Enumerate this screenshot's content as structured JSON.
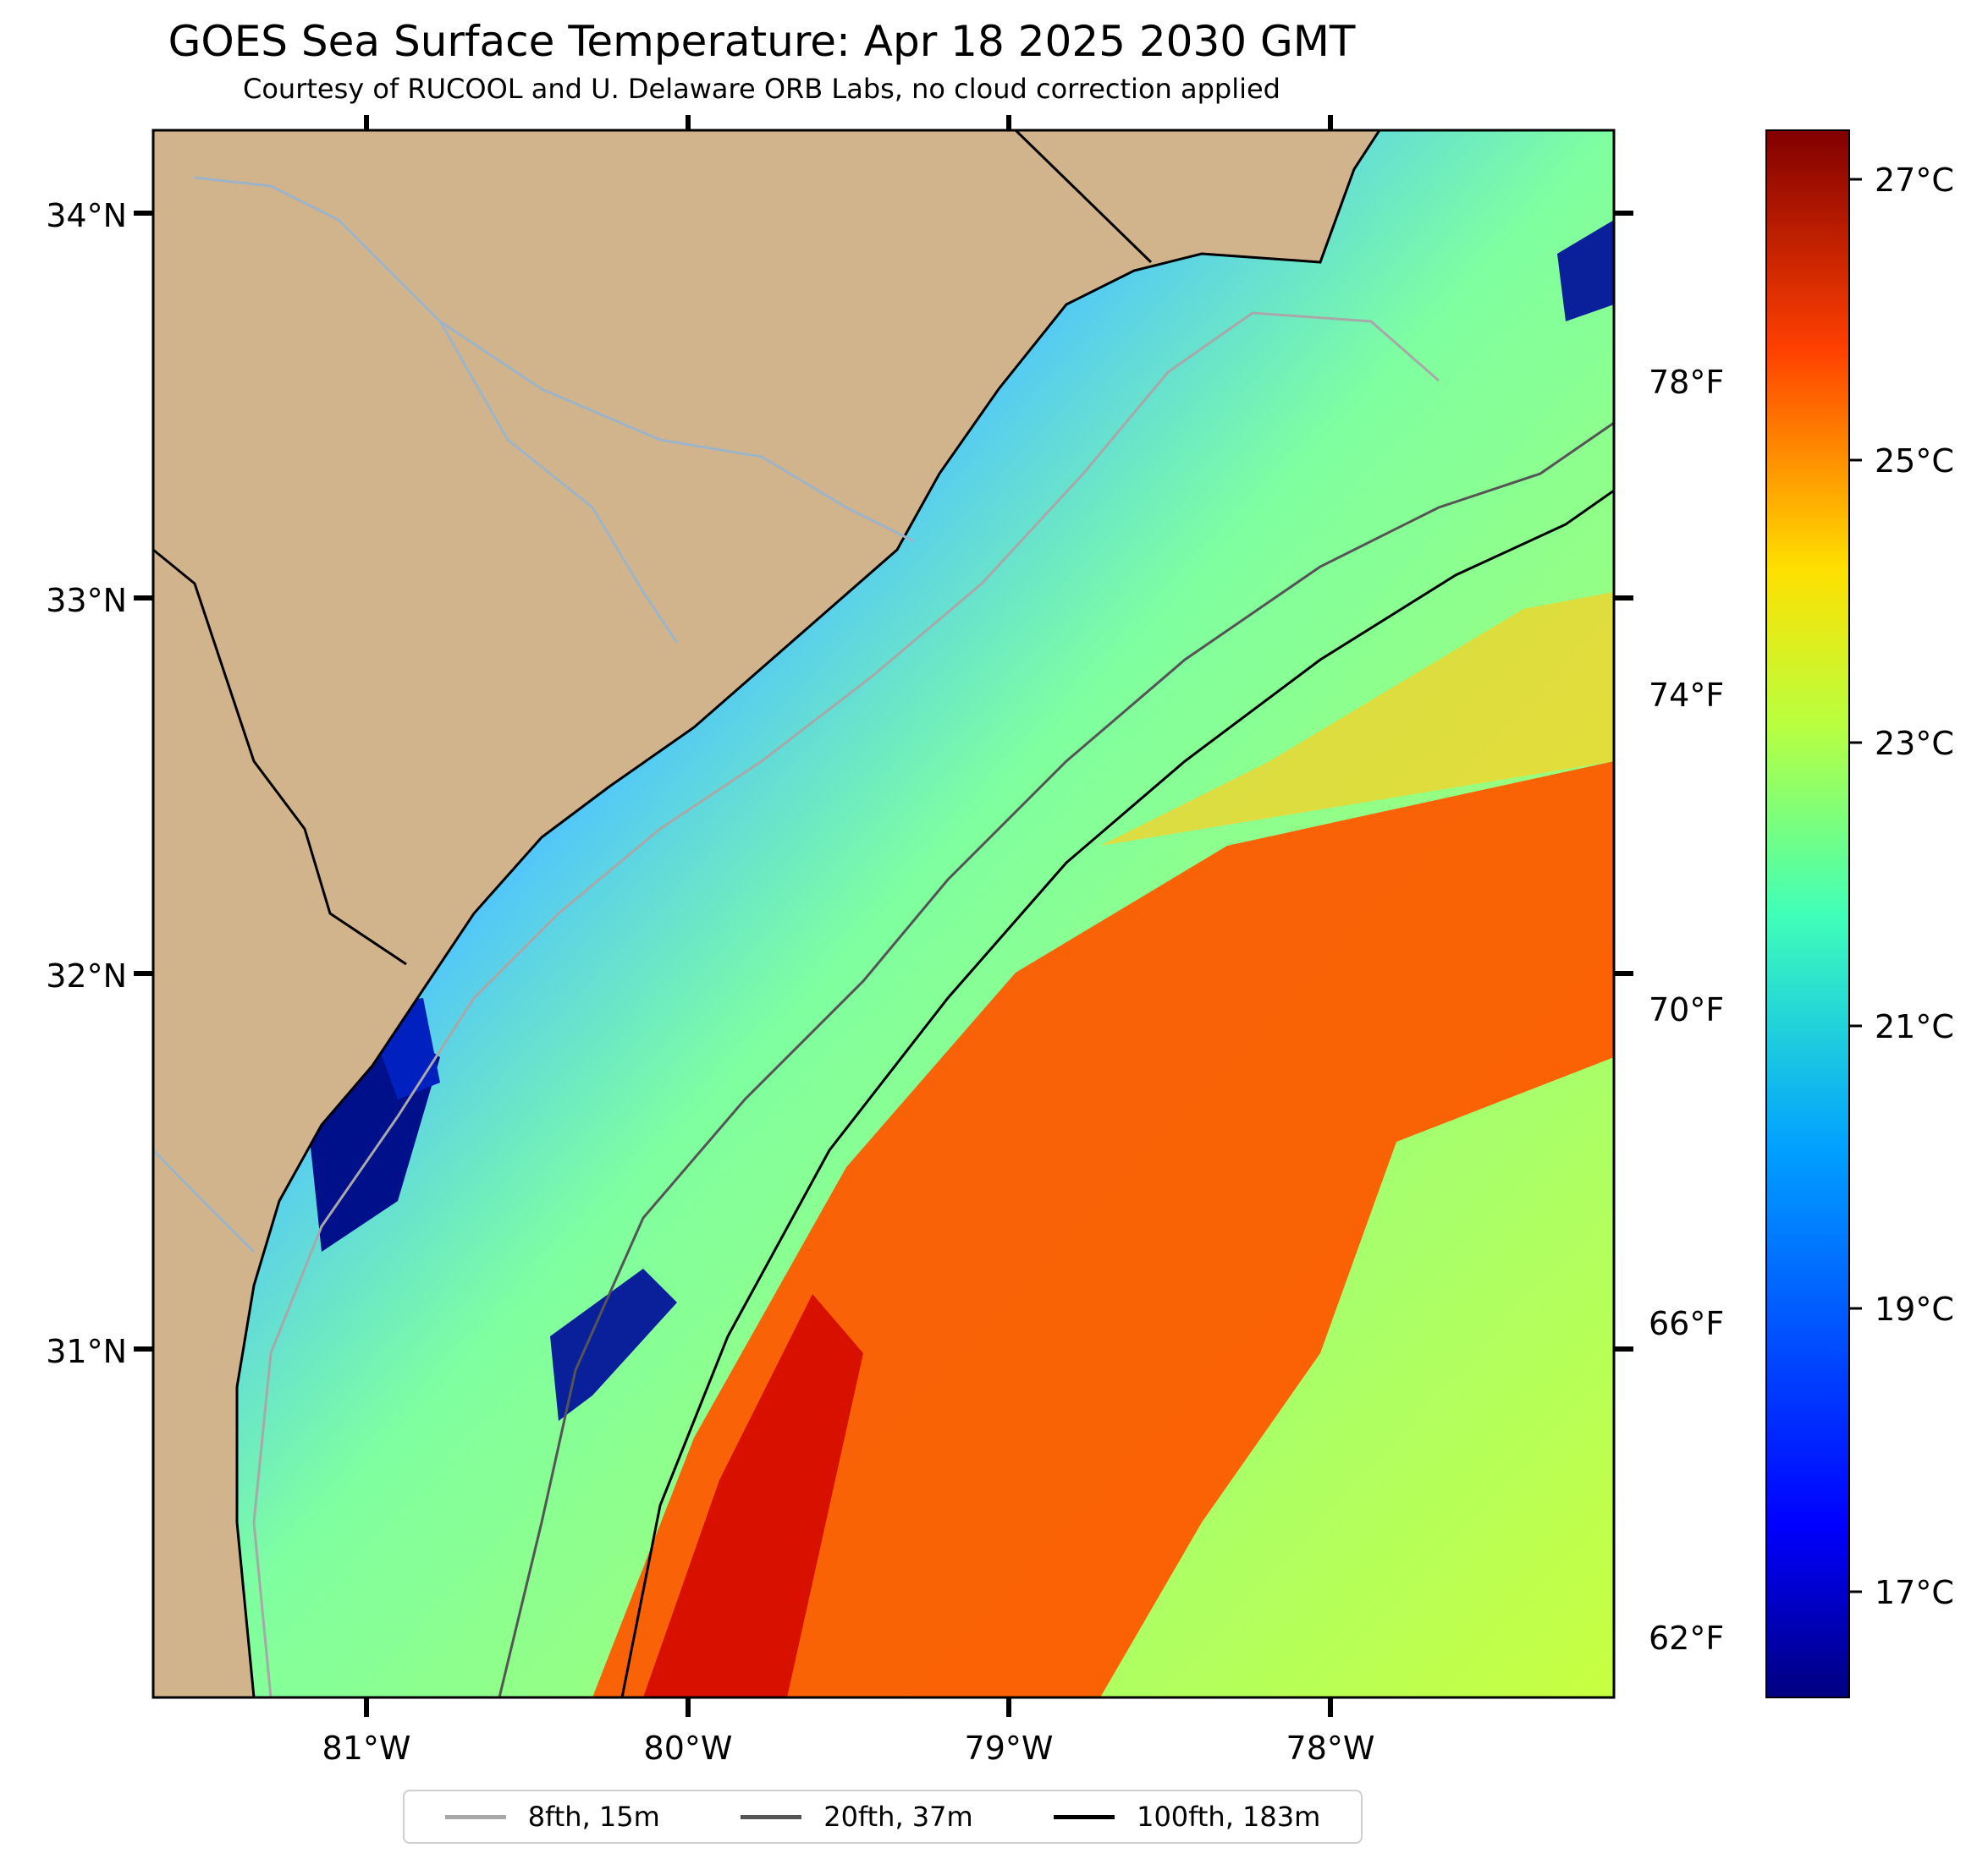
{
  "title": "GOES Sea Surface Temperature: Apr 18 2025 2030 GMT",
  "subtitle": "Courtesy of RUCOOL and U. Delaware ORB Labs, no cloud correction applied",
  "map": {
    "lat_labels": [
      "34°N",
      "33°N",
      "32°N",
      "31°N"
    ],
    "lon_labels": [
      "81°W",
      "80°W",
      "79°W",
      "78°W"
    ],
    "fahrenheit_labels": [
      "78°F",
      "74°F",
      "70°F",
      "66°F",
      "62°F"
    ]
  },
  "colorbar": {
    "colormap": "jet",
    "labels": [
      "27°C",
      "25°C",
      "23°C",
      "21°C",
      "19°C",
      "17°C"
    ]
  },
  "legend": [
    {
      "label": "8fth, 15m",
      "color": "#a8a8a8"
    },
    {
      "label": "20fth, 37m",
      "color": "#555555"
    },
    {
      "label": "100fth, 183m",
      "color": "#000000"
    }
  ],
  "colors": {
    "land": "#d2b48c",
    "river": "#9db4c8"
  }
}
